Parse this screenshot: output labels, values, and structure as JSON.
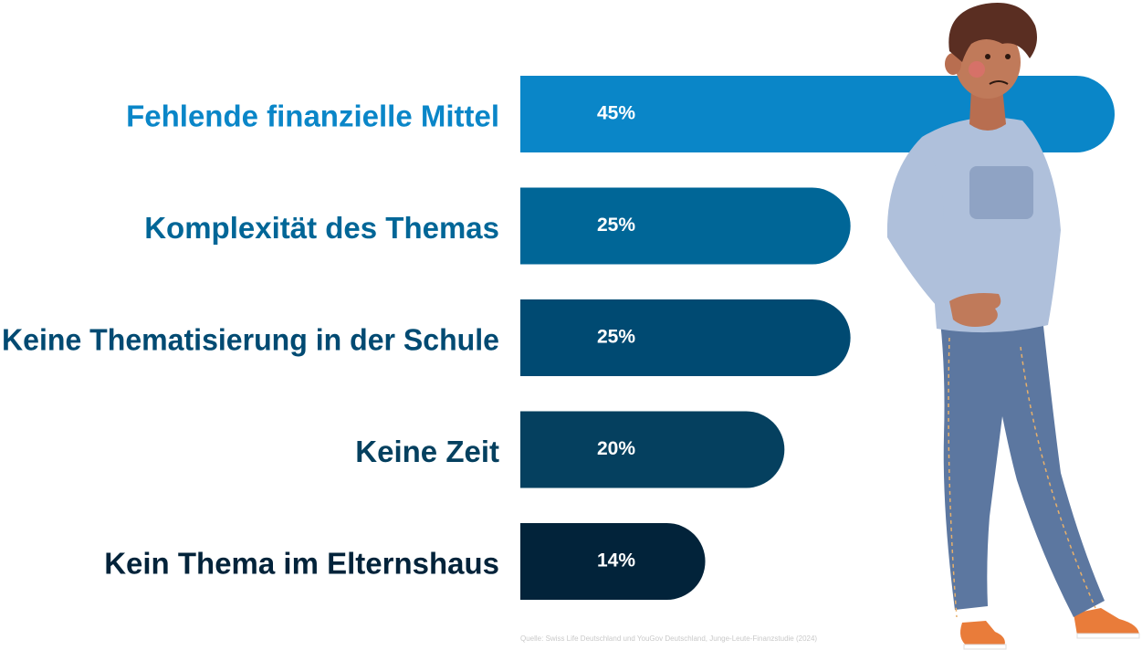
{
  "chart_data": {
    "type": "bar",
    "orientation": "horizontal",
    "categories": [
      "Fehlende finanzielle Mittel",
      "Komplexität des Themas",
      "Keine Thematisierung in der Schule",
      "Keine Zeit",
      "Kein Thema im Elternshaus"
    ],
    "values": [
      45,
      25,
      25,
      20,
      14
    ],
    "value_labels": [
      "45%",
      "25%",
      "25%",
      "20%",
      "14%"
    ],
    "colors": [
      "#0A86C8",
      "#006697",
      "#004A72",
      "#05405F",
      "#02233A"
    ],
    "label_colors": [
      "#0A86C8",
      "#006697",
      "#004A72",
      "#05405F",
      "#02233A"
    ],
    "grid": false,
    "legend": "none"
  },
  "source": "Quelle: Swiss Life Deutschland und YouGov Deutschland, Junge-Leute-Finanzstudie (2024)"
}
